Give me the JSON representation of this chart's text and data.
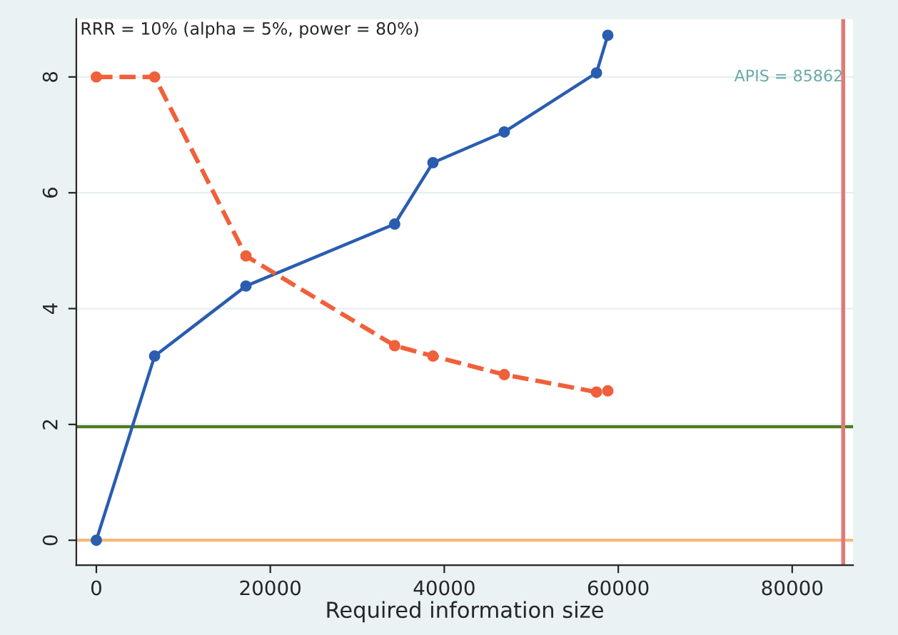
{
  "chart_data": {
    "type": "line",
    "xlabel": "Required information size",
    "xlim": [
      -2300,
      87000
    ],
    "ylim": [
      -0.43,
      9.0
    ],
    "xticks": [
      0,
      20000,
      40000,
      60000,
      80000
    ],
    "yticks": [
      0,
      2,
      4,
      6,
      8
    ],
    "grid": "y",
    "series": [
      {
        "color": "#2a5db0",
        "line_style": "solid",
        "marker": "circle",
        "x": [
          0,
          6700,
          17200,
          34300,
          38700,
          46900,
          57500,
          58800
        ],
        "values": [
          0,
          3.18,
          4.39,
          5.46,
          6.52,
          7.05,
          8.07,
          8.72
        ]
      },
      {
        "color": "#f0603a",
        "line_style": "dashed",
        "marker": "circle",
        "x": [
          0,
          6700,
          17200,
          34300,
          38700,
          46900,
          57500,
          58800
        ],
        "values": [
          8,
          8,
          4.91,
          3.36,
          3.18,
          2.86,
          2.56,
          2.58
        ]
      }
    ],
    "ref_lines": [
      {
        "axis": "y",
        "value": 1.96,
        "color": "#4d7a1f"
      },
      {
        "axis": "y",
        "value": 0,
        "color": "#f5b97a"
      },
      {
        "axis": "x",
        "value": 85862,
        "label": "APIS = 85862",
        "color": "#e07a7a"
      }
    ],
    "annotations": [
      "RRR = 10% (alpha = 5%, power = 80%)"
    ]
  }
}
